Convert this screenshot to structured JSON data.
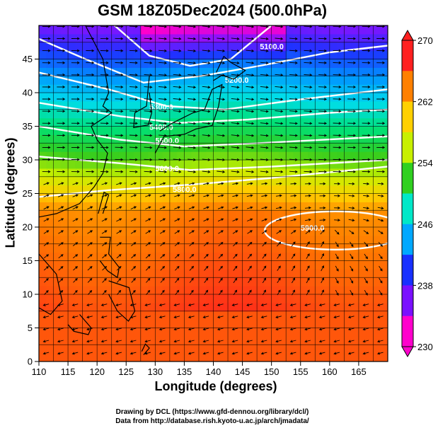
{
  "title": "GSM 18Z05Dec2024 (500.0hPa)",
  "chart_data": {
    "type": "heatmap",
    "title": "GSM 18Z05Dec2024 (500.0hPa)",
    "xlabel": "Longitude (degrees)",
    "ylabel": "Latitude  (degrees)",
    "xlim": [
      110,
      170
    ],
    "ylim": [
      0,
      50
    ],
    "x_ticks": [
      110,
      115,
      120,
      125,
      130,
      135,
      140,
      145,
      150,
      155,
      160,
      165
    ],
    "y_ticks": [
      0,
      5,
      10,
      15,
      20,
      25,
      30,
      35,
      40,
      45
    ],
    "colorbar": {
      "min": 230,
      "max": 270,
      "tick_labels": [
        "270",
        "262",
        "254",
        "246",
        "238",
        "230"
      ],
      "colors": [
        "#ff00cc",
        "#7a10ff",
        "#1830ff",
        "#00a8ff",
        "#00e8c8",
        "#30d020",
        "#c8f000",
        "#ffd000",
        "#ff8000",
        "#ff2020"
      ]
    },
    "contours": [
      {
        "label": "5100.0",
        "value": 5100
      },
      {
        "label": "5200.0",
        "value": 5200
      },
      {
        "label": "5300.0",
        "value": 5300
      },
      {
        "label": "5400.0",
        "value": 5400
      },
      {
        "label": "5500.0",
        "value": 5500
      },
      {
        "label": "5600.0",
        "value": 5600
      },
      {
        "label": "5800.0",
        "value": 5800
      },
      {
        "label": "5900.0",
        "value": 5900
      }
    ]
  },
  "credits": [
    "Drawing by DCL (https://www.gfd-dennou.org/library/dcl/)",
    "Data from http://database.rish.kyoto-u.ac.jp/arch/jmadata/"
  ]
}
